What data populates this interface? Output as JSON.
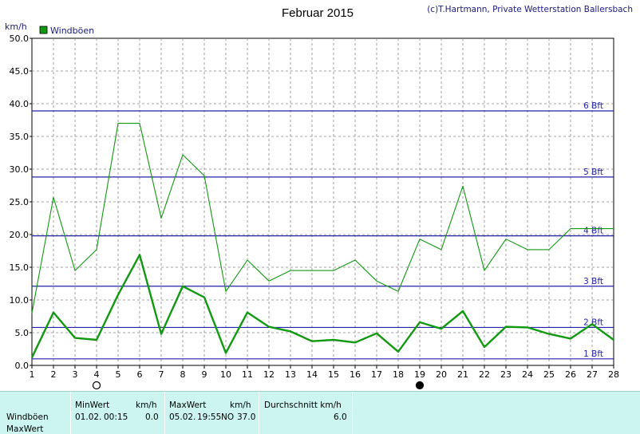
{
  "credit": "(c)T.Hartmann, Private Wetterstation Ballersbach",
  "colors": {
    "series": "#119911",
    "bft": "#2222aa",
    "grid": "#888888",
    "panel": "#ccf5ef"
  },
  "chart_data": {
    "type": "line",
    "title": "Februar 2015",
    "ylabel": "km/h",
    "xlabel": "",
    "ylim": [
      0,
      50
    ],
    "xlim": [
      1,
      28
    ],
    "legend_position": "top-left",
    "grid": true,
    "x": [
      1,
      2,
      3,
      4,
      5,
      6,
      7,
      8,
      9,
      10,
      11,
      12,
      13,
      14,
      15,
      16,
      17,
      18,
      19,
      20,
      21,
      22,
      23,
      24,
      25,
      26,
      27,
      28
    ],
    "x_tick_labels": [
      "1",
      "2",
      "3",
      "4",
      "5",
      "6",
      "7",
      "8",
      "9",
      "10",
      "11",
      "12",
      "13",
      "14",
      "15",
      "16",
      "17",
      "18",
      "19",
      "20",
      "21",
      "22",
      "23",
      "24",
      "25",
      "26",
      "27",
      "28"
    ],
    "y_tick_labels": [
      "0.0",
      "5.0",
      "10.0",
      "15.0",
      "20.0",
      "25.0",
      "30.0",
      "35.0",
      "40.0",
      "45.0",
      "50.0"
    ],
    "series": [
      {
        "name": "Windböen",
        "role": "max",
        "values": [
          8.0,
          25.7,
          14.5,
          17.7,
          37.0,
          37.0,
          22.5,
          32.2,
          29.0,
          11.3,
          16.1,
          12.9,
          14.5,
          14.5,
          14.5,
          16.1,
          12.9,
          11.3,
          19.3,
          17.7,
          27.4,
          14.5,
          19.3,
          17.7,
          17.7,
          20.9,
          20.9,
          20.9
        ]
      },
      {
        "role": "mean",
        "values": [
          1.2,
          8.1,
          4.2,
          3.9,
          10.8,
          16.9,
          4.8,
          12.1,
          10.4,
          1.9,
          8.1,
          5.9,
          5.2,
          3.7,
          3.9,
          3.5,
          4.9,
          2.1,
          6.6,
          5.6,
          8.3,
          2.8,
          5.9,
          5.8,
          4.8,
          4.1,
          6.3,
          3.9
        ]
      }
    ],
    "beaufort_lines": [
      {
        "label": "1 Bft",
        "value": 1.0
      },
      {
        "label": "2 Bft",
        "value": 5.8
      },
      {
        "label": "3 Bft",
        "value": 12.1
      },
      {
        "label": "4 Bft",
        "value": 19.8
      },
      {
        "label": "5 Bft",
        "value": 28.8
      },
      {
        "label": "6 Bft",
        "value": 38.9
      }
    ],
    "moon_markers": [
      {
        "day": 4,
        "phase": "full-moon"
      },
      {
        "day": 19,
        "phase": "new-moon"
      }
    ]
  },
  "summary": {
    "row_label_1": "Windböen",
    "row_label_2": "MaxWert",
    "min_header": "MinWert",
    "min_unit": "km/h",
    "min_date": "01.02.",
    "min_time": "00:15",
    "min_value": "0.0",
    "max_header": "MaxWert",
    "max_unit": "km/h",
    "max_date": "05.02.",
    "max_time": "19:55",
    "max_dir": "NO",
    "max_value": "37.0",
    "avg_header": "Durchschnitt km/h",
    "avg_value": "6.0"
  }
}
